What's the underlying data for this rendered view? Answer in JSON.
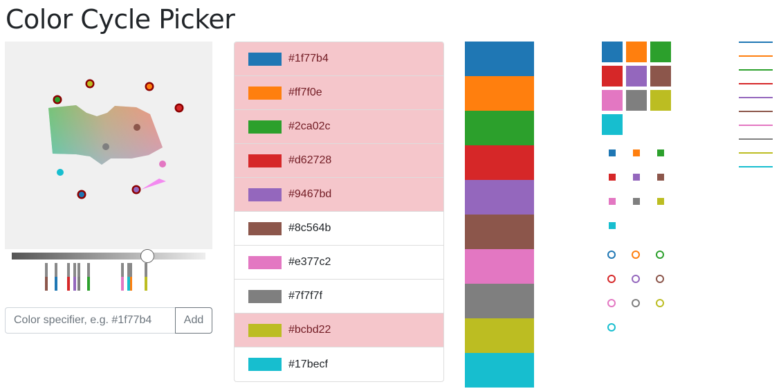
{
  "title": "Color Cycle Picker",
  "colors": [
    "#1f77b4",
    "#ff7f0e",
    "#2ca02c",
    "#d62728",
    "#9467bd",
    "#8c564b",
    "#e377c2",
    "#7f7f7f",
    "#bcbd22",
    "#17becf"
  ],
  "selected": [
    true,
    true,
    true,
    true,
    true,
    false,
    false,
    false,
    true,
    false
  ],
  "input": {
    "placeholder": "Color specifier, e.g. #1f77b4",
    "value": ""
  },
  "add_label": "Add",
  "lightness_slider": {
    "value": 0.7
  },
  "icons": {
    "point_marker": "circle",
    "square_marker": "square",
    "line_marker": "line"
  }
}
